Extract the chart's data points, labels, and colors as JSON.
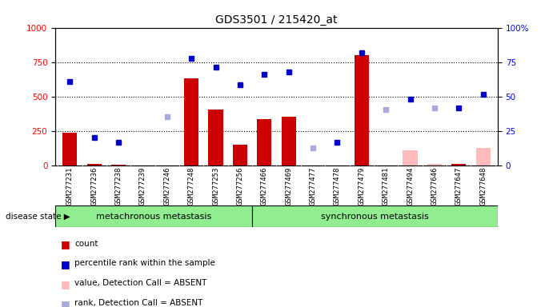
{
  "title": "GDS3501 / 215420_at",
  "samples": [
    "GSM277231",
    "GSM277236",
    "GSM277238",
    "GSM277239",
    "GSM277246",
    "GSM277248",
    "GSM277253",
    "GSM277256",
    "GSM277466",
    "GSM277469",
    "GSM277477",
    "GSM277478",
    "GSM277479",
    "GSM277481",
    "GSM277494",
    "GSM277646",
    "GSM277647",
    "GSM277648"
  ],
  "count_values": [
    240,
    15,
    10,
    0,
    0,
    630,
    410,
    155,
    335,
    355,
    0,
    0,
    800,
    0,
    110,
    15,
    15,
    130
  ],
  "count_absent": [
    false,
    false,
    false,
    false,
    true,
    false,
    false,
    false,
    false,
    false,
    false,
    false,
    false,
    false,
    true,
    true,
    false,
    true
  ],
  "percentile_values": [
    610,
    205,
    170,
    0,
    355,
    780,
    715,
    585,
    660,
    680,
    130,
    170,
    820,
    410,
    480,
    420,
    420,
    520
  ],
  "percentile_absent": [
    false,
    false,
    false,
    false,
    true,
    false,
    false,
    false,
    false,
    false,
    true,
    false,
    false,
    true,
    false,
    true,
    false,
    false
  ],
  "count_bar_color": "#cc0000",
  "count_bar_absent_color": "#ffbbbb",
  "percentile_marker_color": "#0000cc",
  "percentile_marker_absent_color": "#aaaadd",
  "ylim_left": [
    0,
    1000
  ],
  "ylim_right": [
    0,
    100
  ],
  "yticks_left": [
    0,
    250,
    500,
    750,
    1000
  ],
  "yticks_right": [
    0,
    25,
    50,
    75,
    100
  ],
  "meta_count": 8,
  "sync_count": 10,
  "group1_label": "metachronous metastasis",
  "group2_label": "synchronous metastasis",
  "bg_color": "#d8d8d8",
  "group_bg_color": "#90ee90",
  "plot_bg_color": "#ffffff"
}
